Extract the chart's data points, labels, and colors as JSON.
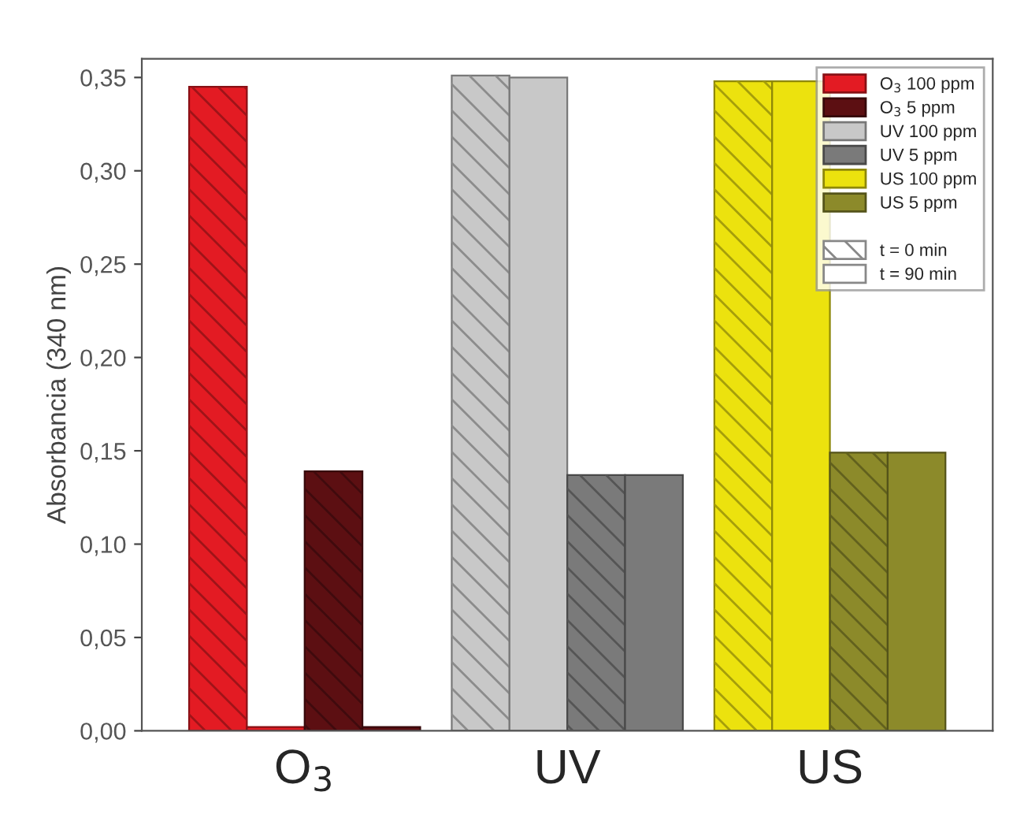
{
  "chart_data": {
    "type": "bar",
    "ylabel": "Absorbancia (340 nm)",
    "categories": [
      "O$_{3}$",
      "UV",
      "US"
    ],
    "series": [
      {
        "color": "#e31b23",
        "values": [
          0.345,
          null,
          null
        ]
      },
      {
        "name": "O$_{3}$ 100 ppm",
        "color": "#e31b23",
        "values": [
          0.002,
          null,
          null
        ]
      },
      {
        "color": "#5c0f12",
        "values": [
          0.139,
          null,
          null
        ]
      },
      {
        "name": "O$_{3}$ 5 ppm",
        "color": "#5c0f12",
        "values": [
          0.002,
          null,
          null
        ]
      },
      {
        "color": "#c8c8c8",
        "values": [
          null,
          0.351,
          null
        ]
      },
      {
        "name": "UV 100 ppm",
        "color": "#c8c8c8",
        "values": [
          null,
          0.35,
          null
        ]
      },
      {
        "color": "#7a7a7a",
        "values": [
          null,
          0.137,
          null
        ]
      },
      {
        "name": "UV 5 ppm",
        "color": "#7a7a7a",
        "values": [
          null,
          0.137,
          null
        ]
      },
      {
        "color": "#ece20e",
        "values": [
          null,
          null,
          0.348
        ]
      },
      {
        "name": "US 100 ppm",
        "color": "#ece20e",
        "values": [
          null,
          null,
          0.348
        ]
      },
      {
        "color": "#8c8a2a",
        "values": [
          null,
          null,
          0.149
        ]
      },
      {
        "name": "US 5 ppm",
        "color": "#8c8a2a",
        "values": [
          null,
          null,
          0.149
        ]
      }
    ],
    "annotations": [
      "t = 0 min",
      "t = 90 min"
    ],
    "ylim": [
      0,
      0.36
    ],
    "yticks": [
      {
        "value": 0,
        "label": "0,00"
      },
      {
        "value": 0.05,
        "label": "0,05"
      },
      {
        "value": 0.1,
        "label": "0,10"
      },
      {
        "value": 0.15,
        "label": "0,15"
      },
      {
        "value": 0.2,
        "label": "0,20"
      },
      {
        "value": 0.25,
        "label": "0,25"
      },
      {
        "value": 0.3,
        "label": "0,30"
      },
      {
        "value": 0.35,
        "label": "0,35"
      }
    ],
    "grid": false,
    "legend": "top right"
  }
}
